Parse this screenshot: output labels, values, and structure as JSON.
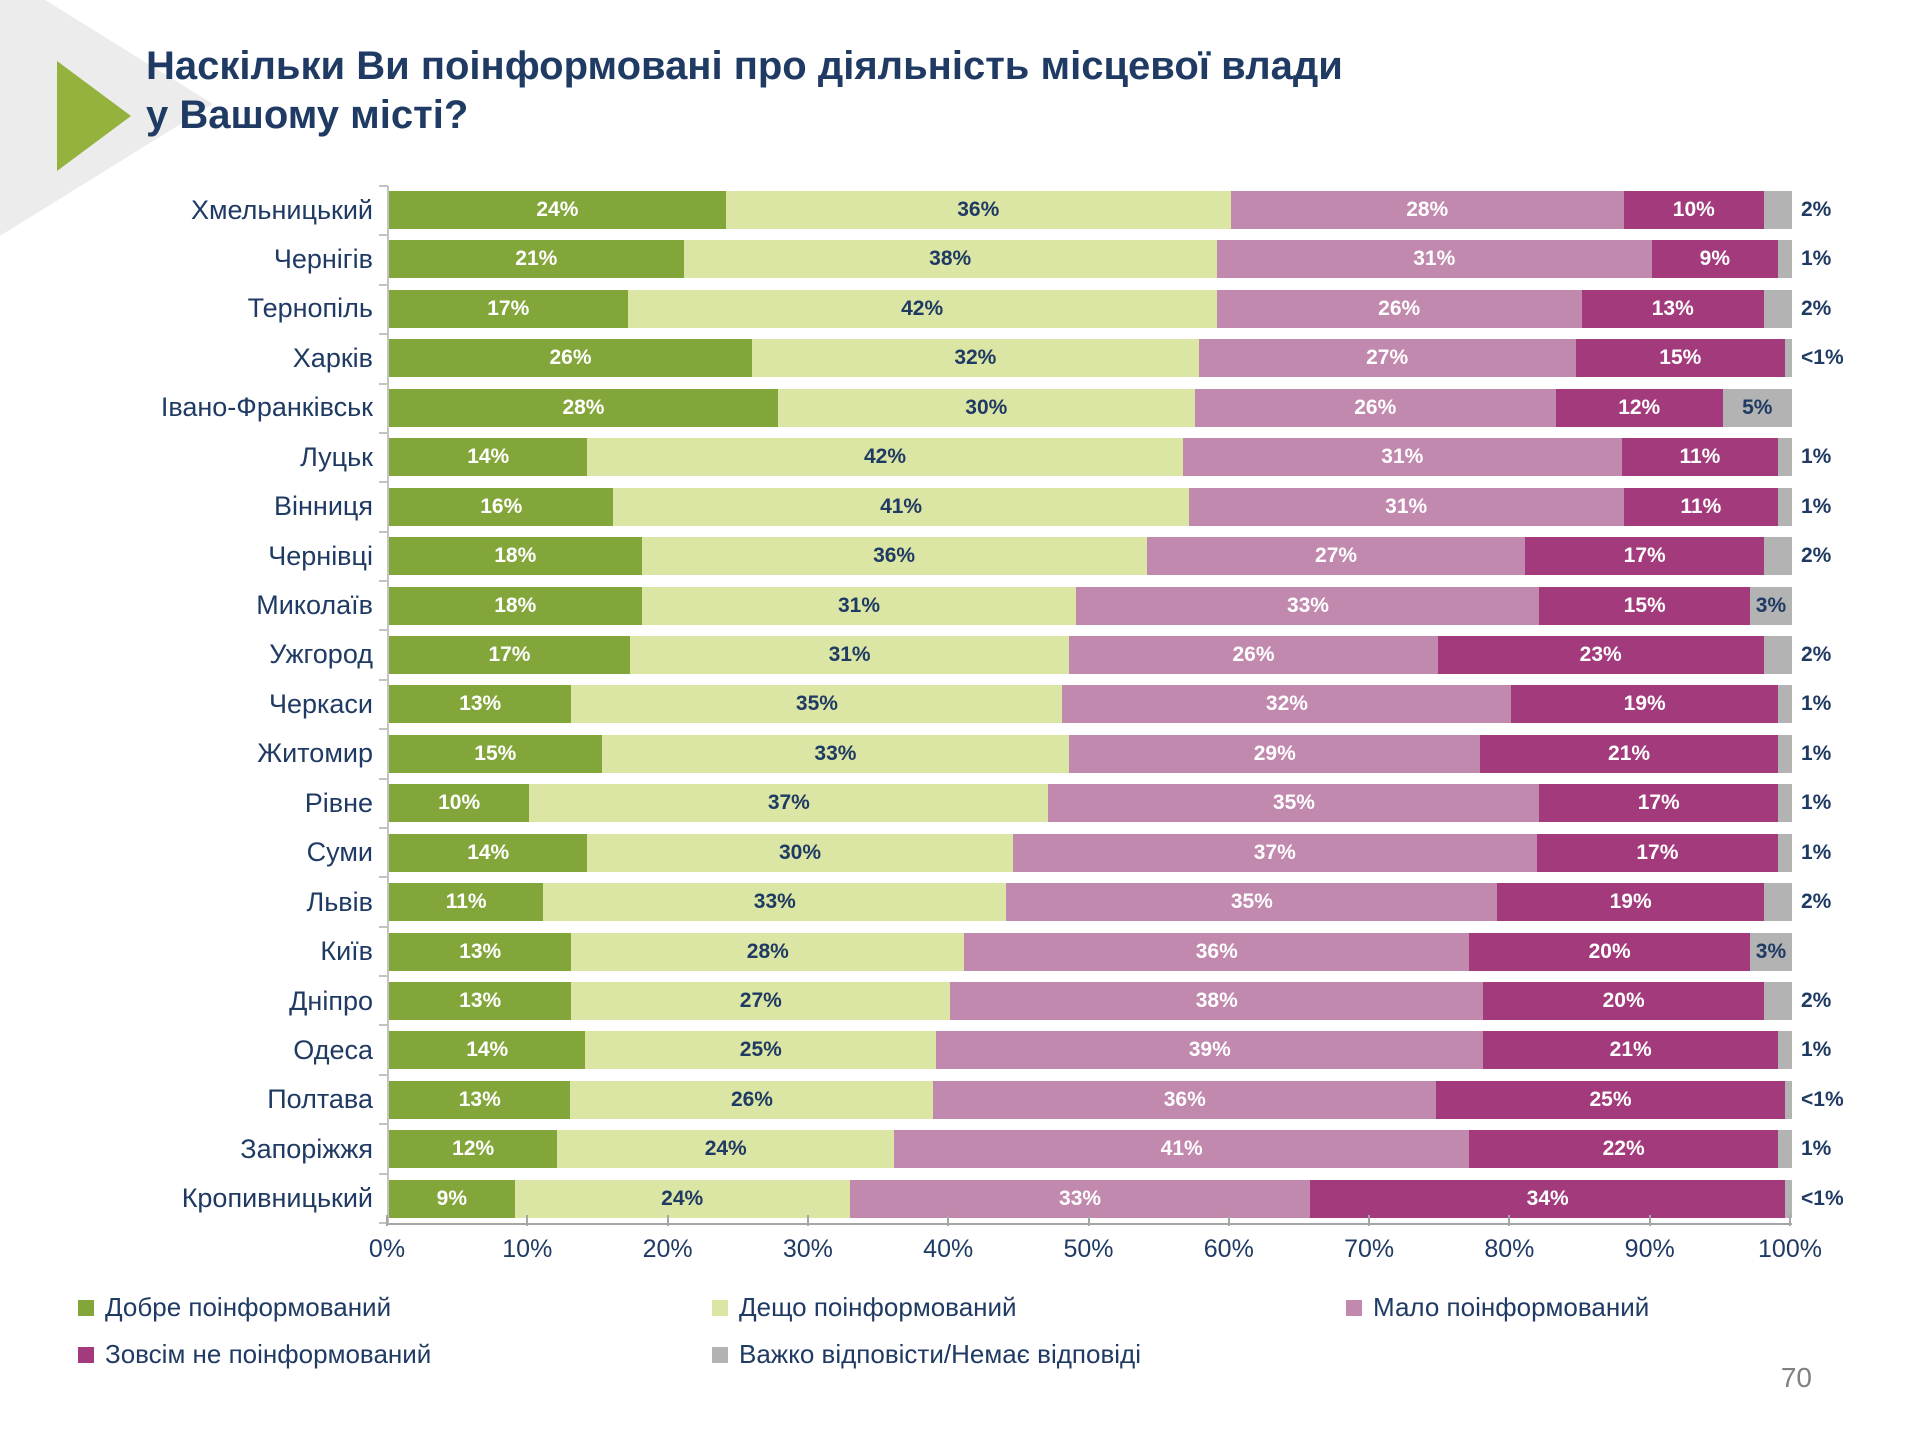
{
  "title": {
    "text": "Наскільки Ви поінформовані про діяльність місцевої влади у Вашому місті?",
    "line1": "Наскільки Ви поінформовані про діяльність місцевої влади",
    "line2": "у Вашому місті?"
  },
  "chart_data": {
    "type": "bar",
    "orientation": "horizontal",
    "stacked": true,
    "unit": "%",
    "xlim": [
      0,
      100
    ],
    "x_ticks": [
      "0%",
      "10%",
      "20%",
      "30%",
      "40%",
      "50%",
      "60%",
      "70%",
      "80%",
      "90%",
      "100%"
    ],
    "series_names": [
      "Добре поінформований",
      "Дещо поінформований",
      "Мало поінформований",
      "Зовсім не поінформований",
      "Важко відповісти/Немає відповіді"
    ],
    "series_colors": [
      "#83a63b",
      "#dce6a4",
      "#c289ae",
      "#a23a7b",
      "#b3b3b3"
    ],
    "rows": [
      {
        "city": "Хмельницький",
        "values": [
          24,
          36,
          28,
          10,
          2
        ],
        "labels": [
          "24%",
          "36%",
          "28%",
          "10%",
          "2%"
        ]
      },
      {
        "city": "Чернігів",
        "values": [
          21,
          38,
          31,
          9,
          1
        ],
        "labels": [
          "21%",
          "38%",
          "31%",
          "9%",
          "1%"
        ]
      },
      {
        "city": "Тернопіль",
        "values": [
          17,
          42,
          26,
          13,
          2
        ],
        "labels": [
          "17%",
          "42%",
          "26%",
          "13%",
          "2%"
        ]
      },
      {
        "city": "Харків",
        "values": [
          26,
          32,
          27,
          15,
          0.5
        ],
        "labels": [
          "26%",
          "32%",
          "27%",
          "15%",
          "<1%"
        ]
      },
      {
        "city": "Івано-Франківськ",
        "values": [
          28,
          30,
          26,
          12,
          5
        ],
        "labels": [
          "28%",
          "30%",
          "26%",
          "12%",
          "5%"
        ]
      },
      {
        "city": "Луцьк",
        "values": [
          14,
          42,
          31,
          11,
          1
        ],
        "labels": [
          "14%",
          "42%",
          "31%",
          "11%",
          "1%"
        ]
      },
      {
        "city": "Вінниця",
        "values": [
          16,
          41,
          31,
          11,
          1
        ],
        "labels": [
          "16%",
          "41%",
          "31%",
          "11%",
          "1%"
        ]
      },
      {
        "city": "Чернівці",
        "values": [
          18,
          36,
          27,
          17,
          2
        ],
        "labels": [
          "18%",
          "36%",
          "27%",
          "17%",
          "2%"
        ]
      },
      {
        "city": "Миколаїв",
        "values": [
          18,
          31,
          33,
          15,
          3
        ],
        "labels": [
          "18%",
          "31%",
          "33%",
          "15%",
          "3%"
        ]
      },
      {
        "city": "Ужгород",
        "values": [
          17,
          31,
          26,
          23,
          2
        ],
        "labels": [
          "17%",
          "31%",
          "26%",
          "23%",
          "2%"
        ]
      },
      {
        "city": "Черкаси",
        "values": [
          13,
          35,
          32,
          19,
          1
        ],
        "labels": [
          "13%",
          "35%",
          "32%",
          "19%",
          "1%"
        ]
      },
      {
        "city": "Житомир",
        "values": [
          15,
          33,
          29,
          21,
          1
        ],
        "labels": [
          "15%",
          "33%",
          "29%",
          "21%",
          "1%"
        ]
      },
      {
        "city": "Рівне",
        "values": [
          10,
          37,
          35,
          17,
          1
        ],
        "labels": [
          "10%",
          "37%",
          "35%",
          "17%",
          "1%"
        ]
      },
      {
        "city": "Суми",
        "values": [
          14,
          30,
          37,
          17,
          1
        ],
        "labels": [
          "14%",
          "30%",
          "37%",
          "17%",
          "1%"
        ]
      },
      {
        "city": "Львів",
        "values": [
          11,
          33,
          35,
          19,
          2
        ],
        "labels": [
          "11%",
          "33%",
          "35%",
          "19%",
          "2%"
        ]
      },
      {
        "city": "Київ",
        "values": [
          13,
          28,
          36,
          20,
          3
        ],
        "labels": [
          "13%",
          "28%",
          "36%",
          "20%",
          "3%"
        ]
      },
      {
        "city": "Дніпро",
        "values": [
          13,
          27,
          38,
          20,
          2
        ],
        "labels": [
          "13%",
          "27%",
          "38%",
          "20%",
          "2%"
        ]
      },
      {
        "city": "Одеса",
        "values": [
          14,
          25,
          39,
          21,
          1
        ],
        "labels": [
          "14%",
          "25%",
          "39%",
          "21%",
          "1%"
        ]
      },
      {
        "city": "Полтава",
        "values": [
          13,
          26,
          36,
          25,
          0.5
        ],
        "labels": [
          "13%",
          "26%",
          "36%",
          "25%",
          "<1%"
        ]
      },
      {
        "city": "Запоріжжя",
        "values": [
          12,
          24,
          41,
          22,
          1
        ],
        "labels": [
          "12%",
          "24%",
          "41%",
          "22%",
          "1%"
        ]
      },
      {
        "city": "Кропивницький",
        "values": [
          9,
          24,
          33,
          34,
          0.5
        ],
        "labels": [
          "9%",
          "24%",
          "33%",
          "34%",
          "<1%"
        ]
      }
    ]
  },
  "page_number": "70"
}
